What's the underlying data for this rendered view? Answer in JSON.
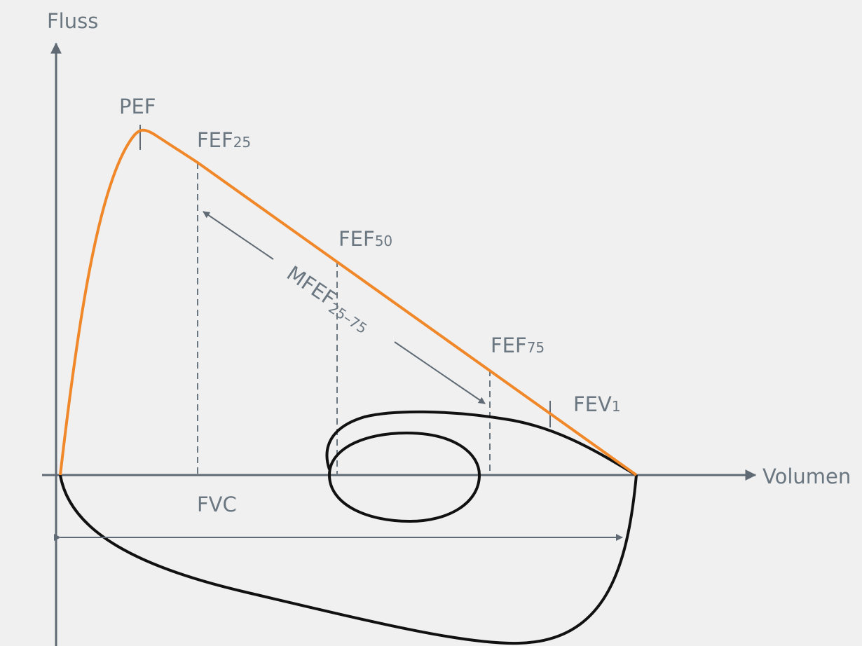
{
  "axes": {
    "y_label": "Fluss",
    "x_label": "Volumen"
  },
  "labels": {
    "pef": "PEF",
    "fef25": {
      "main": "FEF",
      "sub": "25"
    },
    "fef50": {
      "main": "FEF",
      "sub": "50"
    },
    "fef75": {
      "main": "FEF",
      "sub": "75"
    },
    "fev1": {
      "main": "FEV",
      "sub": "1"
    },
    "mfef": {
      "main": "MFEF",
      "sub": "25–75"
    },
    "fvc": "FVC"
  },
  "colors": {
    "background": "#f0f0f0",
    "axis": "#5f6a74",
    "label": "#6a7680",
    "expiratory_curve": "#f0882a",
    "loop": "#111111"
  }
}
